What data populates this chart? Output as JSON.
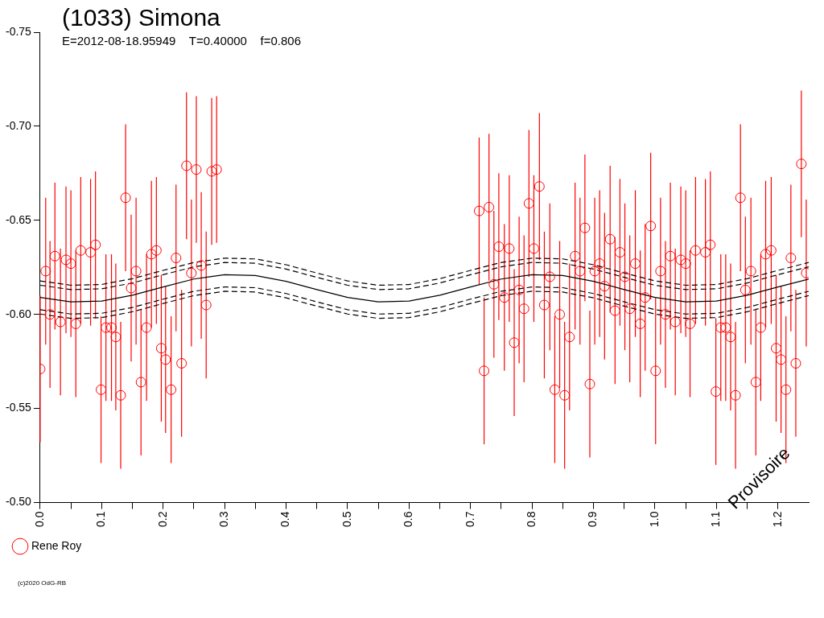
{
  "chart_data": {
    "type": "scatter",
    "title": "(1033) Simona",
    "subtitle": "E=2012-08-18.95949    T=0.40000    f=0.806",
    "xlim": [
      0,
      1.25
    ],
    "xticks": [
      {
        "value": 0,
        "label": "0.0"
      },
      {
        "value": 0.05,
        "label": null
      },
      0.1,
      {
        "value": 0.15,
        "label": null
      },
      0.2,
      {
        "value": 0.25,
        "label": null
      },
      0.3,
      {
        "value": 0.35,
        "label": null
      },
      0.4,
      {
        "value": 0.45,
        "label": null
      },
      0.5,
      {
        "value": 0.55,
        "label": null
      },
      0.6,
      {
        "value": 0.65,
        "label": null
      },
      0.7,
      {
        "value": 0.75,
        "label": null
      },
      0.8,
      {
        "value": 0.85,
        "label": null
      },
      0.9,
      {
        "value": 0.95,
        "label": null
      },
      {
        "value": 1,
        "label": "1.0"
      },
      {
        "value": 1.05,
        "label": null
      },
      1.1,
      {
        "value": 1.15,
        "label": null
      },
      1.2
    ],
    "ylim": [
      -0.5,
      -0.75
    ],
    "yticks": [
      {
        "value": -0.5,
        "label": "-0.50"
      },
      -0.55,
      {
        "value": -0.6,
        "label": "-0.60"
      },
      -0.65,
      {
        "value": -0.7,
        "label": "-0.70"
      },
      -0.75
    ],
    "grid": false,
    "legend": "bottom left",
    "marker": "circle",
    "annotations": [
      "Provisoire",
      "(c)2020 OdG-RB"
    ],
    "series": [
      {
        "name": "Rene Roy",
        "color": "#ff0000",
        "x": [
          0.0,
          0.009,
          0.016,
          0.024,
          0.033,
          0.042,
          0.05,
          0.058,
          0.066,
          0.082,
          0.09,
          0.099,
          0.107,
          0.116,
          0.123,
          0.131,
          0.139,
          0.148,
          0.156,
          0.164,
          0.173,
          0.181,
          0.189,
          0.197,
          0.204,
          0.213,
          0.221,
          0.23,
          0.238,
          0.246,
          0.254,
          0.262,
          0.27,
          0.279,
          0.287,
          0.714,
          0.722,
          0.73,
          0.738,
          0.746,
          0.755,
          0.763,
          0.771,
          0.779,
          0.787,
          0.795,
          0.803,
          0.812,
          0.82,
          0.829,
          0.837,
          0.845,
          0.853,
          0.861,
          0.87,
          0.878,
          0.886,
          0.894,
          0.902,
          0.91,
          0.918,
          0.927,
          0.935,
          0.943,
          0.951,
          0.959,
          0.968,
          0.976,
          0.984,
          0.993,
          1.001,
          1.009,
          1.017,
          1.025,
          1.033,
          1.042,
          1.05,
          1.057,
          1.066,
          1.082,
          1.09,
          1.099,
          1.107,
          1.115,
          1.123,
          1.131,
          1.139,
          1.147,
          1.156,
          1.164,
          1.172,
          1.18,
          1.189,
          1.197,
          1.205,
          1.213,
          1.221,
          1.229,
          1.238,
          1.246
        ],
        "values": [
          -0.571,
          -0.623,
          -0.6,
          -0.631,
          -0.596,
          -0.629,
          -0.627,
          -0.595,
          -0.634,
          -0.633,
          -0.637,
          -0.56,
          -0.593,
          -0.593,
          -0.588,
          -0.557,
          -0.662,
          -0.614,
          -0.623,
          -0.564,
          -0.593,
          -0.632,
          -0.634,
          -0.582,
          -0.576,
          -0.56,
          -0.63,
          -0.574,
          -0.679,
          -0.622,
          -0.677,
          -0.626,
          -0.605,
          -0.676,
          -0.677,
          -0.655,
          -0.57,
          -0.657,
          -0.616,
          -0.636,
          -0.609,
          -0.635,
          -0.585,
          -0.613,
          -0.603,
          -0.659,
          -0.635,
          -0.668,
          -0.605,
          -0.62,
          -0.56,
          -0.6,
          -0.557,
          -0.588,
          -0.631,
          -0.623,
          -0.646,
          -0.563,
          -0.623,
          -0.627,
          -0.615,
          -0.64,
          -0.602,
          -0.633,
          -0.62,
          -0.603,
          -0.627,
          -0.595,
          -0.609,
          -0.647,
          -0.57,
          -0.623,
          -0.6,
          -0.631,
          -0.596,
          -0.629,
          -0.627,
          -0.595,
          -0.634,
          -0.633,
          -0.637,
          -0.559,
          -0.593,
          -0.593,
          -0.588,
          -0.557,
          -0.662,
          -0.613,
          -0.623,
          -0.564,
          -0.593,
          -0.632,
          -0.634,
          -0.582,
          -0.576,
          -0.56,
          -0.63,
          -0.574,
          -0.68,
          -0.622
        ],
        "errors": [
          0.039,
          0.039,
          0.039,
          0.039,
          0.039,
          0.039,
          0.039,
          0.039,
          0.039,
          0.039,
          0.039,
          0.039,
          0.039,
          0.039,
          0.039,
          0.039,
          0.039,
          0.039,
          0.039,
          0.039,
          0.039,
          0.039,
          0.039,
          0.039,
          0.039,
          0.039,
          0.039,
          0.039,
          0.039,
          0.039,
          0.039,
          0.039,
          0.039,
          0.039,
          0.039,
          0.039,
          0.039,
          0.039,
          0.039,
          0.039,
          0.039,
          0.039,
          0.039,
          0.039,
          0.039,
          0.039,
          0.039,
          0.039,
          0.039,
          0.039,
          0.039,
          0.039,
          0.039,
          0.039,
          0.039,
          0.039,
          0.039,
          0.039,
          0.039,
          0.039,
          0.039,
          0.039,
          0.039,
          0.039,
          0.039,
          0.039,
          0.039,
          0.039,
          0.039,
          0.039,
          0.039,
          0.039,
          0.039,
          0.039,
          0.039,
          0.039,
          0.039,
          0.039,
          0.039,
          0.039,
          0.039,
          0.039,
          0.039,
          0.039,
          0.039,
          0.039,
          0.039,
          0.039,
          0.039,
          0.039,
          0.039,
          0.039,
          0.039,
          0.039,
          0.039,
          0.039,
          0.039,
          0.039,
          0.039,
          0.039
        ]
      },
      {
        "type": "line",
        "color": "#000000",
        "marker": "none",
        "line_style": "solid",
        "x": [
          0,
          0.05,
          0.1,
          0.15,
          0.2,
          0.25,
          0.3,
          0.35,
          0.4,
          0.45,
          0.5,
          0.55,
          0.6,
          0.65,
          0.7,
          0.75,
          0.8,
          0.85,
          0.9,
          0.95,
          1,
          1.05,
          1.1,
          1.15,
          1.2,
          1.25
        ],
        "values": [
          -0.609,
          -0.6067,
          -0.6071,
          -0.6102,
          -0.6146,
          -0.6188,
          -0.6211,
          -0.6207,
          -0.6176,
          -0.6132,
          -0.609,
          -0.6067,
          -0.6071,
          -0.6102,
          -0.6146,
          -0.6188,
          -0.6211,
          -0.6207,
          -0.6176,
          -0.6132,
          -0.609,
          -0.6067,
          -0.6071,
          -0.6102,
          -0.6146,
          -0.6188
        ]
      },
      {
        "type": "line",
        "color": "#000000",
        "marker": "none",
        "line_style": "dashed",
        "x": [
          0,
          0.05,
          0.1,
          0.15,
          0.2,
          0.25,
          0.3,
          0.35,
          0.4,
          0.45,
          0.5,
          0.55,
          0.6,
          0.65,
          0.7,
          0.75,
          0.8,
          0.85,
          0.9,
          0.95,
          1,
          1.05,
          1.1,
          1.15,
          1.2,
          1.25
        ],
        "values": [
          -0.6155,
          -0.6132,
          -0.6136,
          -0.6167,
          -0.6211,
          -0.6253,
          -0.6276,
          -0.6272,
          -0.6241,
          -0.6197,
          -0.6155,
          -0.6132,
          -0.6136,
          -0.6167,
          -0.6211,
          -0.6253,
          -0.6276,
          -0.6272,
          -0.6241,
          -0.6197,
          -0.6155,
          -0.6132,
          -0.6136,
          -0.6167,
          -0.6211,
          -0.6253
        ]
      },
      {
        "type": "line",
        "color": "#000000",
        "marker": "none",
        "line_style": "dashed",
        "x": [
          0,
          0.05,
          0.1,
          0.15,
          0.2,
          0.25,
          0.3,
          0.35,
          0.4,
          0.45,
          0.5,
          0.55,
          0.6,
          0.65,
          0.7,
          0.75,
          0.8,
          0.85,
          0.9,
          0.95,
          1,
          1.05,
          1.1,
          1.15,
          1.2,
          1.25
        ],
        "values": [
          -0.6025,
          -0.6002,
          -0.6006,
          -0.6037,
          -0.6081,
          -0.6123,
          -0.6146,
          -0.6142,
          -0.6111,
          -0.6067,
          -0.6025,
          -0.6002,
          -0.6006,
          -0.6037,
          -0.6081,
          -0.6123,
          -0.6146,
          -0.6142,
          -0.6111,
          -0.6067,
          -0.6025,
          -0.6002,
          -0.6006,
          -0.6037,
          -0.6081,
          -0.6123
        ]
      },
      {
        "type": "line",
        "color": "#000000",
        "marker": "none",
        "line_style": "dashed",
        "x": [
          0,
          0.05,
          0.1,
          0.15,
          0.2,
          0.25,
          0.3,
          0.35,
          0.4,
          0.45,
          0.5,
          0.55,
          0.6,
          0.65,
          0.7,
          0.75,
          0.8,
          0.85,
          0.9,
          0.95,
          1,
          1.05,
          1.1,
          1.15,
          1.2,
          1.25
        ],
        "values": [
          -0.6178,
          -0.6155,
          -0.6159,
          -0.619,
          -0.6234,
          -0.6276,
          -0.6299,
          -0.6295,
          -0.6264,
          -0.622,
          -0.6178,
          -0.6155,
          -0.6159,
          -0.619,
          -0.6234,
          -0.6276,
          -0.6299,
          -0.6295,
          -0.6264,
          -0.622,
          -0.6178,
          -0.6155,
          -0.6159,
          -0.619,
          -0.6234,
          -0.6276
        ]
      },
      {
        "type": "line",
        "color": "#000000",
        "marker": "none",
        "line_style": "dashed",
        "x": [
          0,
          0.05,
          0.1,
          0.15,
          0.2,
          0.25,
          0.3,
          0.35,
          0.4,
          0.45,
          0.5,
          0.55,
          0.6,
          0.65,
          0.7,
          0.75,
          0.8,
          0.85,
          0.9,
          0.95,
          1,
          1.05,
          1.1,
          1.15,
          1.2,
          1.25
        ],
        "values": [
          -0.6002,
          -0.5979,
          -0.5983,
          -0.6014,
          -0.6058,
          -0.61,
          -0.6123,
          -0.6119,
          -0.6088,
          -0.6044,
          -0.6002,
          -0.5979,
          -0.5983,
          -0.6014,
          -0.6058,
          -0.61,
          -0.6123,
          -0.6119,
          -0.6088,
          -0.6044,
          -0.6002,
          -0.5979,
          -0.5983,
          -0.6014,
          -0.6058,
          -0.61
        ]
      }
    ]
  }
}
